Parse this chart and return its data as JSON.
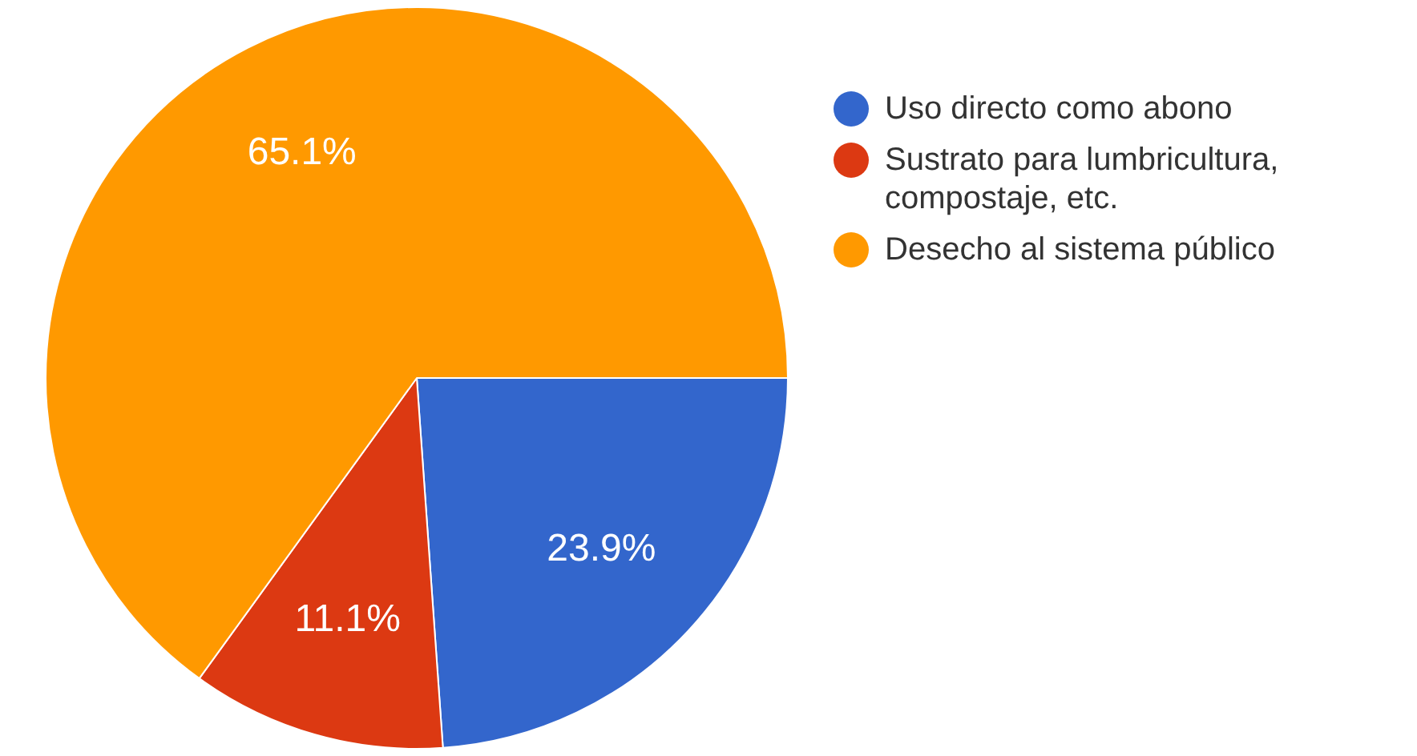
{
  "chart_data": {
    "type": "pie",
    "categories": [
      "Uso directo como abono",
      "Sustrato para lumbricultura, compostaje, etc.",
      "Desecho al sistema público"
    ],
    "values": [
      23.9,
      11.1,
      65.1
    ],
    "colors": [
      "#3366cc",
      "#dc3912",
      "#ff9900"
    ],
    "value_labels": [
      "23.9%",
      "11.1%",
      "65.1%"
    ],
    "legend": "top right"
  }
}
